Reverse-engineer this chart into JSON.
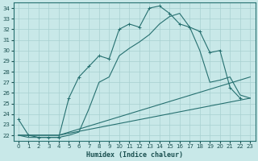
{
  "xlabel": "Humidex (Indice chaleur)",
  "background_color": "#c8e8e8",
  "grid_color": "#a8d0d0",
  "line_color": "#267070",
  "xlim": [
    -0.5,
    23.5
  ],
  "ylim": [
    21.5,
    34.5
  ],
  "xticks": [
    0,
    1,
    2,
    3,
    4,
    5,
    6,
    7,
    8,
    9,
    10,
    11,
    12,
    13,
    14,
    15,
    16,
    17,
    18,
    19,
    20,
    21,
    22,
    23
  ],
  "yticks": [
    22,
    23,
    24,
    25,
    26,
    27,
    28,
    29,
    30,
    31,
    32,
    33,
    34
  ],
  "line1_x": [
    0,
    1,
    2,
    3,
    4,
    5,
    6,
    7,
    8,
    9,
    10,
    11,
    12,
    13,
    14,
    15,
    16,
    17,
    18,
    19,
    20,
    21,
    22
  ],
  "line1_y": [
    23.5,
    22.0,
    21.8,
    21.8,
    21.8,
    25.5,
    27.5,
    28.5,
    29.5,
    29.2,
    32.0,
    32.5,
    32.2,
    34.0,
    34.2,
    33.5,
    32.5,
    32.2,
    31.8,
    29.8,
    30.0,
    26.5,
    25.5
  ],
  "line2_x": [
    0,
    1,
    2,
    3,
    4,
    5,
    6,
    7,
    8,
    9,
    10,
    11,
    12,
    13,
    14,
    15,
    16,
    17,
    18,
    19,
    20,
    21,
    22,
    23
  ],
  "line2_y": [
    22.0,
    21.8,
    21.8,
    21.8,
    21.8,
    22.0,
    22.3,
    24.5,
    27.0,
    27.5,
    29.5,
    30.2,
    30.8,
    31.5,
    32.5,
    33.2,
    33.5,
    32.2,
    30.0,
    27.0,
    27.2,
    27.5,
    25.8,
    25.5
  ],
  "line3_x": [
    0,
    4,
    23
  ],
  "line3_y": [
    22.0,
    22.0,
    27.5
  ],
  "line4_x": [
    0,
    4,
    23
  ],
  "line4_y": [
    22.0,
    22.0,
    25.5
  ]
}
